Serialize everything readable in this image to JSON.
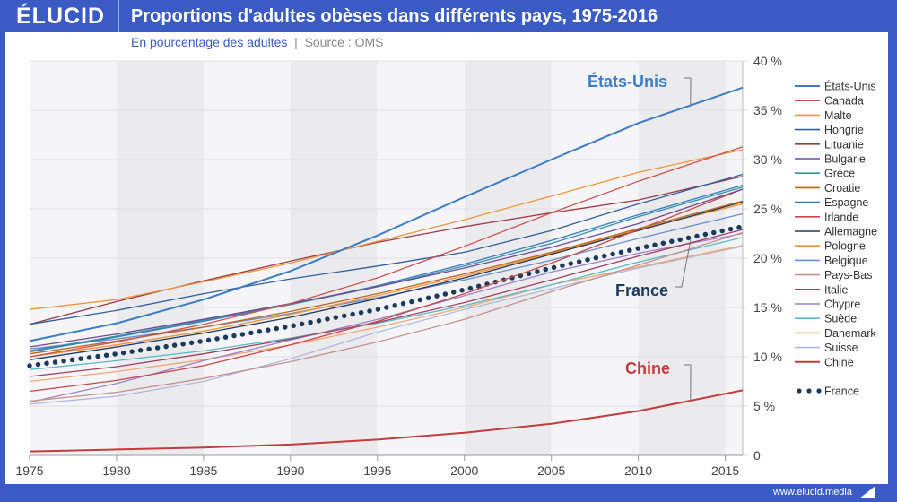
{
  "header": {
    "logo": "ÉLUCID",
    "title": "Proportions d'adultes obèses dans différents pays, 1975-2016"
  },
  "subtitle": {
    "main": "En pourcentage des adultes",
    "separator": "|",
    "source": "Source : OMS"
  },
  "footer": {
    "url": "www.elucid.media"
  },
  "chart_data": {
    "type": "line",
    "title": "Proportions d'adultes obèses dans différents pays, 1975-2016",
    "xlim": [
      1975,
      2016
    ],
    "ylim": [
      0,
      40
    ],
    "xticks": [
      1975,
      1980,
      1985,
      1990,
      1995,
      2000,
      2005,
      2010,
      2015
    ],
    "yticks": [
      0,
      5,
      10,
      15,
      20,
      25,
      30,
      35,
      40
    ],
    "ytick_labels": [
      "0",
      "5 %",
      "10 %",
      "15 %",
      "20 %",
      "25 %",
      "30 %",
      "35 %",
      "40 %"
    ],
    "legend_position": "right",
    "x": [
      1975,
      1980,
      1985,
      1990,
      1995,
      2000,
      2005,
      2010,
      2016
    ],
    "series": [
      {
        "name": "États-Unis",
        "color": "#3a7dc9",
        "values": [
          11.6,
          13.4,
          15.8,
          18.7,
          22.3,
          26.2,
          30.0,
          33.7,
          37.3
        ],
        "width": 2
      },
      {
        "name": "Canada",
        "color": "#d0504d",
        "values": [
          10.0,
          11.5,
          13.3,
          15.4,
          18.0,
          21.2,
          24.6,
          27.8,
          31.3
        ]
      },
      {
        "name": "Malte",
        "color": "#f0963a",
        "values": [
          14.8,
          15.8,
          17.6,
          19.5,
          21.7,
          23.9,
          26.3,
          28.7,
          31.0
        ]
      },
      {
        "name": "Hongrie",
        "color": "#2f5f9e",
        "values": [
          13.3,
          14.7,
          16.4,
          17.9,
          19.2,
          20.6,
          22.8,
          25.5,
          28.5
        ]
      },
      {
        "name": "Lituanie",
        "color": "#9e3a46",
        "values": [
          13.3,
          15.6,
          17.7,
          19.7,
          21.6,
          23.2,
          24.6,
          25.9,
          28.3
        ]
      },
      {
        "name": "Bulgarie",
        "color": "#6e4a94",
        "values": [
          11.0,
          12.3,
          13.8,
          15.4,
          17.1,
          19.0,
          21.1,
          23.5,
          27.0
        ]
      },
      {
        "name": "Grèce",
        "color": "#3a8fa8",
        "values": [
          10.6,
          12.1,
          13.7,
          15.3,
          17.1,
          19.2,
          21.5,
          24.2,
          27.2
        ]
      },
      {
        "name": "Croatie",
        "color": "#c0661a",
        "values": [
          10.3,
          11.6,
          13.0,
          14.6,
          16.4,
          18.4,
          20.6,
          23.0,
          25.8
        ]
      },
      {
        "name": "Espagne",
        "color": "#2f7fc0",
        "values": [
          10.5,
          12.0,
          13.6,
          15.3,
          17.2,
          19.4,
          21.8,
          24.4,
          27.4
        ]
      },
      {
        "name": "Irlande",
        "color": "#c84848",
        "values": [
          6.5,
          7.6,
          9.1,
          11.2,
          13.6,
          16.4,
          19.5,
          22.9,
          27.0
        ]
      },
      {
        "name": "Allemagne",
        "color": "#1e3a64",
        "values": [
          9.7,
          11.0,
          12.4,
          14.0,
          15.9,
          18.0,
          20.4,
          22.8,
          25.7
        ]
      },
      {
        "name": "Pologne",
        "color": "#f09030",
        "values": [
          10.0,
          11.2,
          12.6,
          14.3,
          16.2,
          18.2,
          20.5,
          22.9,
          25.5
        ]
      },
      {
        "name": "Belgique",
        "color": "#6a8fd0",
        "values": [
          10.8,
          11.8,
          13.0,
          14.4,
          16.0,
          17.8,
          19.8,
          22.0,
          24.5
        ]
      },
      {
        "name": "Pays-Bas",
        "color": "#c89090",
        "values": [
          5.5,
          6.4,
          7.8,
          9.5,
          11.5,
          13.8,
          16.6,
          19.3,
          22.6
        ]
      },
      {
        "name": "Italie",
        "color": "#a04060",
        "values": [
          8.0,
          9.0,
          10.3,
          11.8,
          13.5,
          15.5,
          17.8,
          20.2,
          22.9
        ]
      },
      {
        "name": "Chypre",
        "color": "#a080c8",
        "values": [
          5.4,
          7.3,
          9.6,
          11.7,
          13.8,
          16.2,
          18.6,
          20.5,
          22.5
        ]
      },
      {
        "name": "Suède",
        "color": "#5ab8c8",
        "values": [
          8.7,
          9.6,
          10.6,
          11.9,
          13.4,
          15.2,
          17.3,
          19.6,
          22.1
        ]
      },
      {
        "name": "Danemark",
        "color": "#f0a870",
        "values": [
          7.5,
          8.5,
          9.7,
          11.2,
          13.0,
          15.0,
          17.3,
          19.1,
          21.3
        ]
      },
      {
        "name": "Suisse",
        "color": "#b0b8e0",
        "values": [
          5.2,
          6.0,
          7.5,
          9.8,
          12.5,
          14.8,
          16.9,
          19.0,
          21.2
        ]
      },
      {
        "name": "Chine",
        "color": "#c43c3c",
        "values": [
          0.4,
          0.6,
          0.8,
          1.1,
          1.6,
          2.3,
          3.2,
          4.5,
          6.6
        ],
        "width": 2
      },
      {
        "name": "France",
        "color": "#1b3a5c",
        "values": [
          9.1,
          10.3,
          11.6,
          13.1,
          14.8,
          16.8,
          19.0,
          21.0,
          23.2
        ],
        "dotted": true
      }
    ],
    "annotations": [
      {
        "text": "États-Unis",
        "color": "#3a7dc9",
        "year": 2013,
        "value": 35.5
      },
      {
        "text": "France",
        "color": "#1b3a5c",
        "year": 2013,
        "value": 21.8
      },
      {
        "text": "Chine",
        "color": "#c43c3c",
        "year": 2013,
        "value": 5.5
      }
    ]
  }
}
